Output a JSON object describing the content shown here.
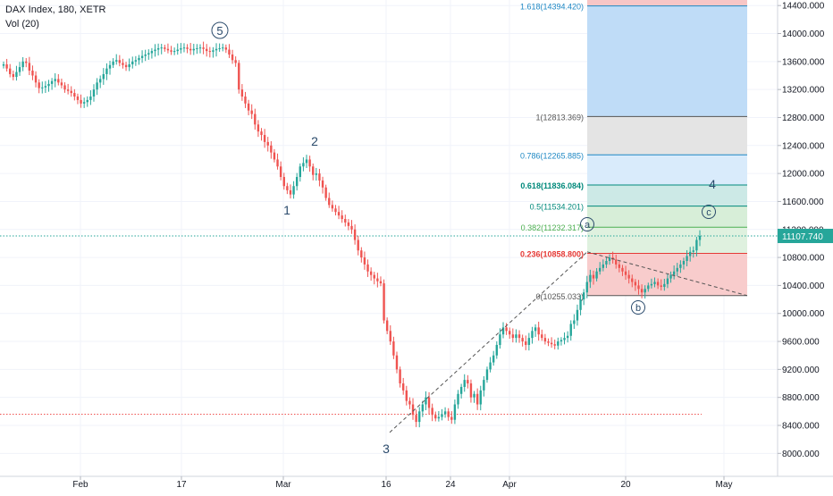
{
  "legend": {
    "symbol_line": "DAX Index, 180, XETR",
    "volume_line": "Vol (20)"
  },
  "price_axis": {
    "ticks": [
      "14400.000",
      "14000.000",
      "13600.000",
      "13200.000",
      "12800.000",
      "12400.000",
      "12000.000",
      "11600.000",
      "11200.000",
      "10800.000",
      "10400.000",
      "10000.000",
      "9600.000",
      "9200.000",
      "8800.000",
      "8400.000",
      "8000.000"
    ],
    "last_price_label": "11107.740",
    "last_price_color": "#26a69a"
  },
  "time_axis": {
    "ticks": [
      "Feb",
      "17",
      "Mar",
      "16",
      "24",
      "Apr",
      "20",
      "May"
    ]
  },
  "fib_levels": [
    {
      "ratio": 1.618,
      "price": 14394.42,
      "label": "1.618(14394.420)",
      "color": "#1e88c4"
    },
    {
      "ratio": 1,
      "price": 12813.369,
      "label": "1(12813.369)",
      "color": "#555555"
    },
    {
      "ratio": 0.786,
      "price": 12265.885,
      "label": "0.786(12265.885)",
      "color": "#1e88c4"
    },
    {
      "ratio": 0.618,
      "price": 11836.084,
      "label": "0.618(11836.084)",
      "color": "#00897b"
    },
    {
      "ratio": 0.5,
      "price": 11534.201,
      "label": "0.5(11534.201)",
      "color": "#00897b"
    },
    {
      "ratio": 0.382,
      "price": 11232.317,
      "label": "0.382(11232.317)",
      "color": "#4caf50"
    },
    {
      "ratio": 0.236,
      "price": 10858.8,
      "label": "0.236(10858.800)",
      "color": "#e53935"
    },
    {
      "ratio": 0,
      "price": 10255.033,
      "label": "0(10255.033)",
      "color": "#555555"
    }
  ],
  "wave_labels": [
    {
      "text": "5",
      "circled": true
    },
    {
      "text": "1",
      "circled": false
    },
    {
      "text": "2",
      "circled": false
    },
    {
      "text": "3",
      "circled": false
    },
    {
      "text": "4",
      "circled": false
    },
    {
      "text": "a",
      "circled": true
    },
    {
      "text": "b",
      "circled": true
    },
    {
      "text": "c",
      "circled": true
    }
  ],
  "colors": {
    "up": "#26a69a",
    "down": "#ef5350",
    "wave_text": "#2a4a6b",
    "grid": "#f0f3fa",
    "axis_text": "#131722"
  },
  "chart_data": {
    "type": "candlestick",
    "title": "DAX Index, 180, XETR",
    "ylim": [
      7800,
      14560
    ],
    "close_series": [
      13560,
      13500,
      13420,
      13380,
      13450,
      13520,
      13600,
      13580,
      13470,
      13400,
      13300,
      13220,
      13230,
      13250,
      13280,
      13320,
      13350,
      13300,
      13260,
      13200,
      13180,
      13150,
      13100,
      13050,
      13000,
      13020,
      13050,
      13100,
      13200,
      13300,
      13350,
      13420,
      13500,
      13550,
      13600,
      13620,
      13580,
      13550,
      13520,
      13560,
      13600,
      13620,
      13650,
      13680,
      13700,
      13720,
      13750,
      13770,
      13790,
      13800,
      13780,
      13760,
      13740,
      13750,
      13770,
      13790,
      13800,
      13780,
      13760,
      13780,
      13790,
      13800,
      13780,
      13750,
      13740,
      13760,
      13780,
      13790,
      13800,
      13770,
      13700,
      13620,
      13580,
      13200,
      13100,
      13000,
      12900,
      12850,
      12700,
      12600,
      12550,
      12450,
      12400,
      12300,
      12200,
      12100,
      11950,
      11820,
      11760,
      11700,
      11820,
      11950,
      12100,
      12150,
      12200,
      12100,
      11980,
      12000,
      11900,
      11800,
      11650,
      11550,
      11500,
      11450,
      11400,
      11350,
      11300,
      11250,
      11200,
      11050,
      10900,
      10800,
      10700,
      10600,
      10550,
      10500,
      10460,
      10430,
      9900,
      9750,
      9600,
      9400,
      9200,
      9000,
      8900,
      8750,
      8700,
      8550,
      8450,
      8600,
      8700,
      8800,
      8650,
      8550,
      8500,
      8520,
      8560,
      8600,
      8520,
      8480,
      8700,
      8850,
      8950,
      9050,
      9000,
      8800,
      8850,
      8700,
      8900,
      9050,
      9200,
      9300,
      9400,
      9550,
      9700,
      9800,
      9750,
      9700,
      9650,
      9700,
      9650,
      9600,
      9550,
      9650,
      9750,
      9800,
      9700,
      9650,
      9600,
      9580,
      9560,
      9540,
      9600,
      9620,
      9650,
      9680,
      9850,
      9900,
      10050,
      10200,
      10300,
      10450,
      10550,
      10500,
      10600,
      10650,
      10700,
      10750,
      10800,
      10770,
      10700,
      10650,
      10600,
      10550,
      10500,
      10450,
      10400,
      10350,
      10300,
      10350,
      10400,
      10420,
      10450,
      10400,
      10380,
      10420,
      10500,
      10550,
      10600,
      10650,
      10700,
      10750,
      10820,
      10880,
      10900,
      11050,
      11107.74
    ],
    "wave_points": [
      {
        "label": "5",
        "price": 13800
      },
      {
        "label": "1",
        "price": 11700
      },
      {
        "label": "2",
        "price": 12200
      },
      {
        "label": "3",
        "price": 8450
      },
      {
        "label": "4",
        "price": 11836
      },
      {
        "label": "a",
        "price": 10859
      },
      {
        "label": "b",
        "price": 10255
      },
      {
        "label": "c",
        "price": 11400
      }
    ],
    "horizontal_lines": [
      {
        "price": 11107.74,
        "style": "dotted",
        "color": "#26a69a"
      },
      {
        "price": 8560,
        "style": "dotted",
        "color": "#ef5350"
      }
    ],
    "grid": true,
    "legend_position": "top-left"
  }
}
